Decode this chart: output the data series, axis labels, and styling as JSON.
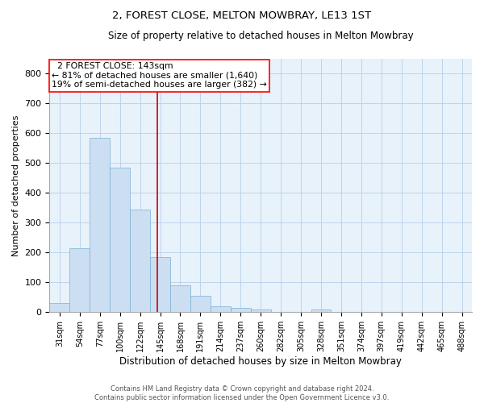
{
  "title": "2, FOREST CLOSE, MELTON MOWBRAY, LE13 1ST",
  "subtitle": "Size of property relative to detached houses in Melton Mowbray",
  "xlabel": "Distribution of detached houses by size in Melton Mowbray",
  "ylabel": "Number of detached properties",
  "bar_color": "#ccdff2",
  "bar_edge_color": "#7aafd4",
  "grid_color": "#b8cfe8",
  "background_color": "#e8f2fb",
  "annotation_line1": "  2 FOREST CLOSE: 143sqm",
  "annotation_line2": "← 81% of detached houses are smaller (1,640)",
  "annotation_line3": "19% of semi-detached houses are larger (382) →",
  "vline_color": "#cc0000",
  "categories": [
    "31sqm",
    "54sqm",
    "77sqm",
    "100sqm",
    "122sqm",
    "145sqm",
    "168sqm",
    "191sqm",
    "214sqm",
    "237sqm",
    "260sqm",
    "282sqm",
    "305sqm",
    "328sqm",
    "351sqm",
    "374sqm",
    "397sqm",
    "419sqm",
    "442sqm",
    "465sqm",
    "488sqm"
  ],
  "values": [
    30,
    215,
    585,
    485,
    345,
    185,
    90,
    55,
    20,
    15,
    10,
    0,
    0,
    10,
    0,
    0,
    0,
    0,
    0,
    0,
    0
  ],
  "ylim": [
    0,
    850
  ],
  "yticks": [
    0,
    100,
    200,
    300,
    400,
    500,
    600,
    700,
    800
  ],
  "footer_text": "Contains HM Land Registry data © Crown copyright and database right 2024.\nContains public sector information licensed under the Open Government Licence v3.0.",
  "figsize": [
    6.0,
    5.0
  ],
  "dpi": 100
}
